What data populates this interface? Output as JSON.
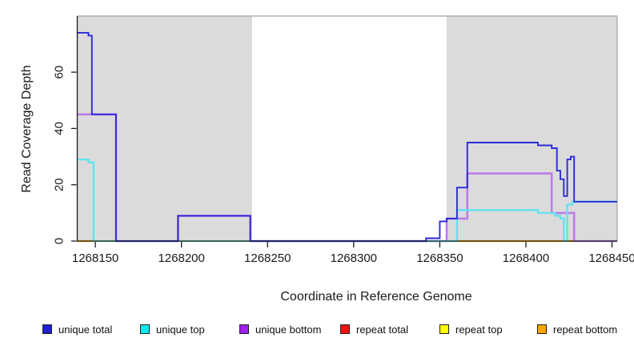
{
  "chart_data": {
    "type": "line",
    "title": "",
    "xlabel": "Coordinate in Reference Genome",
    "ylabel": "Read Coverage Depth",
    "x_domain": [
      1268139.5,
      1268453
    ],
    "ylim": [
      0,
      80
    ],
    "x_ticks": [
      {
        "v": 1268150,
        "label": "1268150"
      },
      {
        "v": 1268200,
        "label": "1268200"
      },
      {
        "v": 1268250,
        "label": "1268250"
      },
      {
        "v": 1268300,
        "label": "1268300"
      },
      {
        "v": 1268350,
        "label": "1268350"
      },
      {
        "v": 1268400,
        "label": "1268400"
      },
      {
        "v": 1268450,
        "label": "1268450"
      }
    ],
    "y_ticks": [
      {
        "v": 0,
        "label": "0"
      },
      {
        "v": 20,
        "label": "20"
      },
      {
        "v": 40,
        "label": "40"
      },
      {
        "v": 60,
        "label": "60"
      }
    ],
    "shaded_regions": [
      {
        "from": 1268139.5,
        "to": 1268241,
        "color": "#DBDBDB"
      },
      {
        "from": 1268354,
        "to": 1268453,
        "color": "#DBDBDB"
      }
    ],
    "panel_border_color": "#A3A3A3",
    "axis_color": "#1c1c1c",
    "layers": [
      {
        "name": "repeat-bottom",
        "kind": "flat",
        "color": "#FFA500",
        "width": 2.2,
        "y": 0,
        "segments": [
          [
            1268139.5,
            1268149
          ],
          [
            1268354,
            1268428
          ]
        ]
      },
      {
        "name": "repeat-total",
        "kind": "flat",
        "color": "#D75A74",
        "width": 2.0,
        "y": 0,
        "segments": [
          [
            1268342,
            1268354
          ],
          [
            1268428,
            1268453
          ]
        ]
      },
      {
        "name": "unique-bottom",
        "kind": "steps",
        "color": "#BE7BE8",
        "width": 2.6,
        "end": 1268453,
        "points": [
          [
            1268139.5,
            45
          ],
          [
            1268162,
            0
          ],
          [
            1268198,
            9
          ],
          [
            1268240,
            0
          ],
          [
            1268354,
            8
          ],
          [
            1268366,
            24
          ],
          [
            1268415,
            10
          ],
          [
            1268428,
            0
          ]
        ]
      },
      {
        "name": "unique-top",
        "kind": "steps",
        "color": "#5FE3EE",
        "width": 2.3,
        "end": 1268453,
        "points": [
          [
            1268139.5,
            29
          ],
          [
            1268146,
            28
          ],
          [
            1268149,
            0
          ],
          [
            1268360,
            11
          ],
          [
            1268407,
            10
          ],
          [
            1268417,
            9
          ],
          [
            1268420,
            8
          ],
          [
            1268422,
            0
          ],
          [
            1268424,
            13
          ],
          [
            1268427,
            14
          ]
        ]
      },
      {
        "name": "repeat-top-zero",
        "kind": "flat",
        "color": "#9CD89C",
        "width": 1.6,
        "y": 0,
        "segments": [
          [
            1268149,
            1268162
          ],
          [
            1268198,
            1268240
          ]
        ]
      },
      {
        "name": "unique-total",
        "kind": "steps",
        "color": "#2B2BD6",
        "width": 1.9,
        "end": 1268453,
        "points": [
          [
            1268139.5,
            74
          ],
          [
            1268146,
            73
          ],
          [
            1268148,
            45
          ],
          [
            1268162,
            0
          ],
          [
            1268198,
            9
          ],
          [
            1268240,
            0
          ],
          [
            1268342,
            1
          ],
          [
            1268350,
            7
          ],
          [
            1268354,
            8
          ],
          [
            1268360,
            19
          ],
          [
            1268366,
            35
          ],
          [
            1268407,
            34
          ],
          [
            1268415,
            33
          ],
          [
            1268418,
            25
          ],
          [
            1268420,
            22
          ],
          [
            1268422,
            16
          ],
          [
            1268424,
            29
          ],
          [
            1268426,
            30
          ],
          [
            1268428,
            14
          ]
        ]
      }
    ],
    "legend": [
      {
        "label": "unique total",
        "color": "#1F1FD6"
      },
      {
        "label": "unique top",
        "color": "#10E8EE"
      },
      {
        "label": "unique bottom",
        "color": "#A020F0"
      },
      {
        "label": "repeat total",
        "color": "#EE1111"
      },
      {
        "label": "repeat top",
        "color": "#FFFF00"
      },
      {
        "label": "repeat bottom",
        "color": "#FFA500"
      }
    ]
  }
}
